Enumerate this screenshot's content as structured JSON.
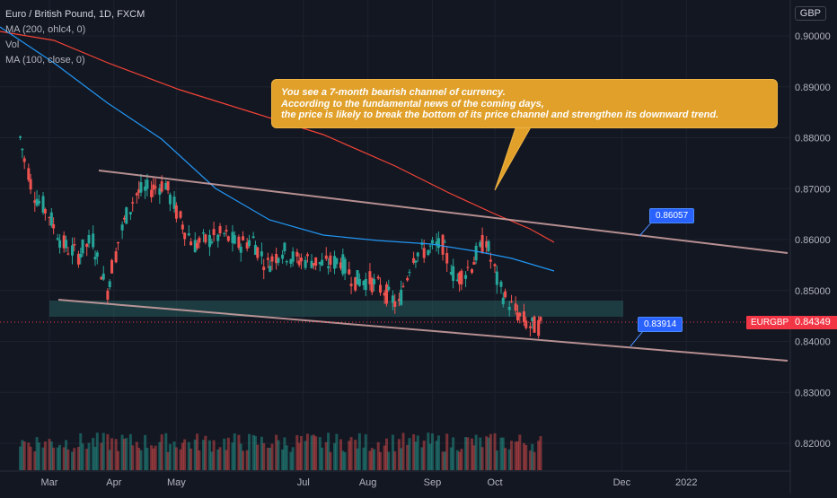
{
  "legend": {
    "title": "Euro / British Pound, 1D, FXCM",
    "ma200": "MA (200, ohlc4, 0)",
    "vol": "Vol",
    "ma100": "MA (100, close, 0)"
  },
  "currency": "GBP",
  "symbol": "EURGBP",
  "annotation": {
    "line1": "You see a 7-month bearish channel of currency.",
    "line2": "According to the fundamental news of the coming days,",
    "line3": "the price is likely to break the bottom of its price channel and strengthen its downward trend."
  },
  "price_labels": {
    "upper": "0.86057",
    "lower": "0.83914"
  },
  "last_price": "0.84349",
  "colors": {
    "background": "#131722",
    "up": "#26a69a",
    "down": "#ef5350",
    "ma200": "#f44336",
    "ma100": "#2196f3",
    "channel": "#d4a5a5",
    "zone": "#3a8a8a",
    "annotation": "#e0a02a",
    "label": "#2962ff",
    "last_price": "#f23645"
  },
  "chart_data": {
    "type": "candlestick",
    "title": "Euro / British Pound, 1D, FXCM",
    "ylim": [
      0.815,
      0.905
    ],
    "y_ticks": [
      0.9,
      0.89,
      0.88,
      0.87,
      0.86,
      0.85,
      0.84,
      0.83,
      0.82
    ],
    "x_ticks": [
      "Mar",
      "Apr",
      "May",
      "Jul",
      "Aug",
      "Sep",
      "Oct",
      "Dec",
      "2022"
    ],
    "grid": true,
    "price_series": [
      {
        "date": "2021-02-15",
        "close": 0.88
      },
      {
        "date": "2021-02-22",
        "close": 0.869
      },
      {
        "date": "2021-03-01",
        "close": 0.865
      },
      {
        "date": "2021-03-08",
        "close": 0.859
      },
      {
        "date": "2021-03-15",
        "close": 0.857
      },
      {
        "date": "2021-03-22",
        "close": 0.86
      },
      {
        "date": "2021-03-29",
        "close": 0.85
      },
      {
        "date": "2021-04-05",
        "close": 0.862
      },
      {
        "date": "2021-04-12",
        "close": 0.869
      },
      {
        "date": "2021-04-19",
        "close": 0.87
      },
      {
        "date": "2021-04-26",
        "close": 0.871
      },
      {
        "date": "2021-05-03",
        "close": 0.864
      },
      {
        "date": "2021-05-10",
        "close": 0.859
      },
      {
        "date": "2021-05-17",
        "close": 0.86
      },
      {
        "date": "2021-05-24",
        "close": 0.861
      },
      {
        "date": "2021-05-31",
        "close": 0.859
      },
      {
        "date": "2021-06-07",
        "close": 0.86
      },
      {
        "date": "2021-06-14",
        "close": 0.855
      },
      {
        "date": "2021-06-21",
        "close": 0.858
      },
      {
        "date": "2021-06-28",
        "close": 0.856
      },
      {
        "date": "2021-07-05",
        "close": 0.856
      },
      {
        "date": "2021-07-12",
        "close": 0.855
      },
      {
        "date": "2021-07-19",
        "close": 0.856
      },
      {
        "date": "2021-07-26",
        "close": 0.852
      },
      {
        "date": "2021-08-02",
        "close": 0.852
      },
      {
        "date": "2021-08-09",
        "close": 0.85
      },
      {
        "date": "2021-08-16",
        "close": 0.847
      },
      {
        "date": "2021-08-23",
        "close": 0.857
      },
      {
        "date": "2021-08-30",
        "close": 0.858
      },
      {
        "date": "2021-09-06",
        "close": 0.859
      },
      {
        "date": "2021-09-13",
        "close": 0.852
      },
      {
        "date": "2021-09-20",
        "close": 0.855
      },
      {
        "date": "2021-09-27",
        "close": 0.86
      },
      {
        "date": "2021-10-04",
        "close": 0.85
      },
      {
        "date": "2021-10-11",
        "close": 0.846
      },
      {
        "date": "2021-10-18",
        "close": 0.843
      },
      {
        "date": "2021-10-25",
        "close": 0.843
      }
    ],
    "annotations": {
      "upper_channel": {
        "from": [
          "2021-03-22",
          0.873
        ],
        "to": [
          "2022-01-31",
          0.857
        ]
      },
      "lower_channel": {
        "from": [
          "2021-02-28",
          0.848
        ],
        "to": [
          "2022-01-31",
          0.836
        ]
      },
      "support_zone": [
        0.844,
        0.848
      ],
      "upper_label_price": 0.86057,
      "lower_label_price": 0.83914
    }
  }
}
